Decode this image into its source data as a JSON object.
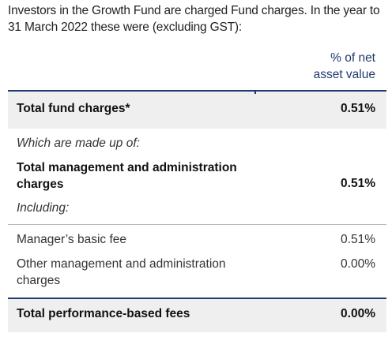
{
  "intro": {
    "line1": "Investors in the Growth Fund are charged Fund charges. In the year to",
    "line2": "31 March 2022 these were (excluding GST):"
  },
  "header": {
    "line1": "% of net",
    "line2": "asset value"
  },
  "rows": {
    "total_fund_charges": {
      "label": "Total fund charges*",
      "value": "0.51%"
    },
    "made_up_of": {
      "label": "Which are made up of:"
    },
    "total_mgmt_admin": {
      "label_line1": "Total management and administration",
      "label_line2": "charges",
      "value": "0.51%"
    },
    "including": {
      "label": "Including:"
    },
    "managers_basic_fee": {
      "label": "Manager’s basic fee",
      "value": "0.51%"
    },
    "other_mgmt_admin": {
      "label_line1": "Other management and administration",
      "label_line2": "charges",
      "value": "0.00%"
    },
    "total_performance_fees": {
      "label": "Total performance-based fees",
      "value": "0.00%"
    }
  },
  "colors": {
    "accent": "#1f3a6e",
    "band": "#efefef",
    "rule": "#b8b8b8"
  }
}
